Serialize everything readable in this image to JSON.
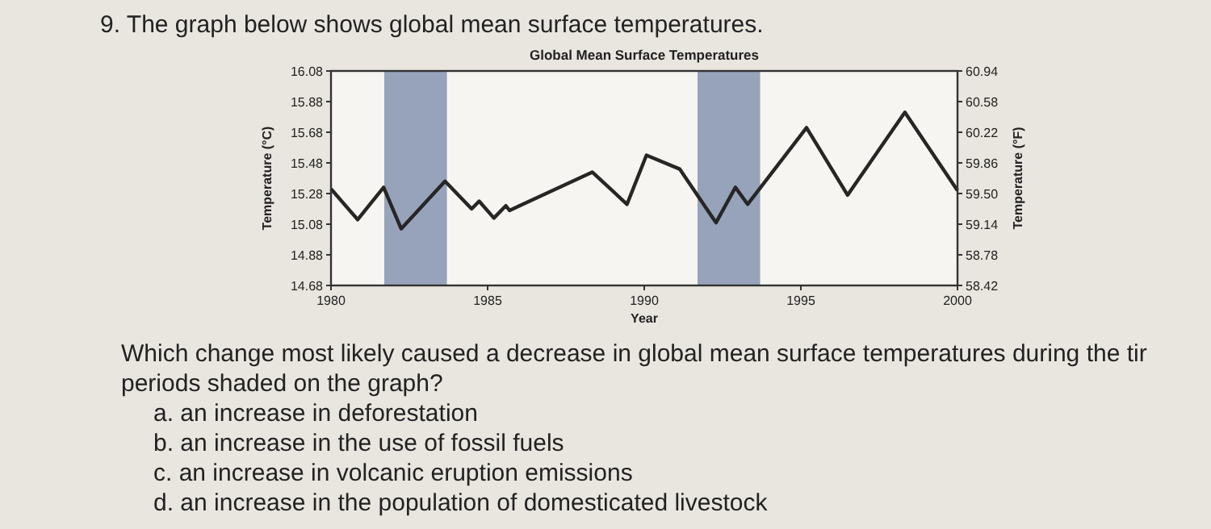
{
  "chart_data": {
    "type": "line",
    "title": "Global Mean Surface Temperatures",
    "xlabel": "Year",
    "ylabel": "Temperature (°C)",
    "y2label": "Temperature (°F)",
    "x": [
      1980,
      1980.85,
      1981.68,
      1982.24,
      1983.64,
      1984.49,
      1984.73,
      1985.2,
      1985.58,
      1985.7,
      1988.34,
      1989.45,
      1990.07,
      1991.13,
      1992.29,
      1992.91,
      1993.3,
      1995.18,
      1996.49,
      1998.32,
      2000
    ],
    "series": [
      {
        "color": "#262626",
        "values": [
          15.31,
          15.11,
          15.32,
          15.05,
          15.36,
          15.18,
          15.23,
          15.12,
          15.2,
          15.17,
          15.42,
          15.21,
          15.53,
          15.44,
          15.09,
          15.32,
          15.21,
          15.71,
          15.27,
          15.81,
          15.3
        ]
      }
    ],
    "xlim": [
      1980,
      2000
    ],
    "xticks": [
      1980,
      1985,
      1990,
      1995,
      2000
    ],
    "ylim": [
      14.68,
      16.08
    ],
    "yticks": [
      14.68,
      14.88,
      15.08,
      15.28,
      15.48,
      15.68,
      15.88,
      16.08
    ],
    "y2lim": [
      58.42,
      60.94
    ],
    "y2ticks": [
      58.42,
      58.78,
      59.14,
      {
        "value": 59.5,
        "label": "59.50"
      },
      59.86,
      60.22,
      60.58,
      60.94
    ],
    "bands": [
      {
        "axis": "x",
        "from": 1981.7,
        "to": 1983.7,
        "color": "#97a3ba"
      },
      {
        "axis": "x",
        "from": 1991.7,
        "to": 1993.7,
        "color": "#97a3ba"
      }
    ],
    "grid": false,
    "marker": "none",
    "line_style": "solid",
    "annotations": [
      "9. The graph below shows global mean surface temperatures.",
      "Which change most likely caused a decrease in global mean surface temperatures during the tir",
      "periods shaded on the graph?",
      "a. an increase in deforestation",
      "b. an increase in the use of fossil fuels",
      "c. an increase in volcanic eruption emissions",
      "d. an increase in the population of domesticated livestock"
    ]
  }
}
